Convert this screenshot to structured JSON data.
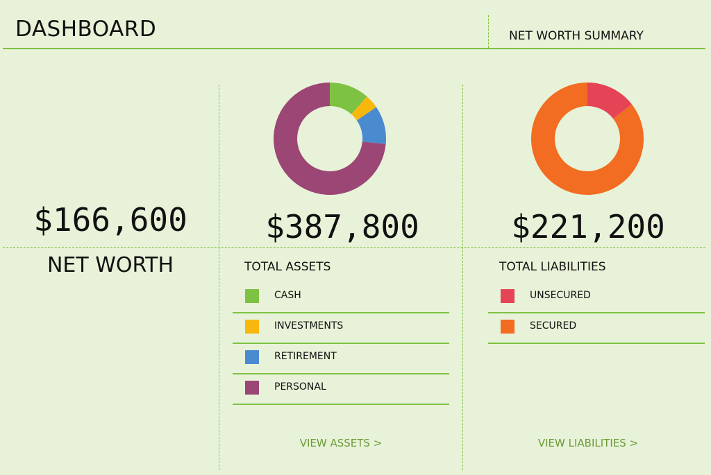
{
  "header": {
    "title": "DASHBOARD",
    "summary_label": "NET WORTH SUMMARY"
  },
  "net_worth": {
    "value": "$166,600",
    "label": "NET WORTH"
  },
  "assets": {
    "total": "$387,800",
    "title": "TOTAL ASSETS",
    "items": [
      {
        "label": "CASH",
        "color": "#7dc242",
        "share": 0.115
      },
      {
        "label": "INVESTMENTS",
        "color": "#f8b70c",
        "share": 0.04
      },
      {
        "label": "RETIREMENT",
        "color": "#4a8bd0",
        "share": 0.11
      },
      {
        "label": "PERSONAL",
        "color": "#9b4675",
        "share": 0.735
      }
    ],
    "link": "VIEW ASSETS >"
  },
  "liabilities": {
    "total": "$221,200",
    "title": "TOTAL LIABILITIES",
    "items": [
      {
        "label": "UNSECURED",
        "color": "#e54457",
        "share": 0.145
      },
      {
        "label": "SECURED",
        "color": "#f26c21",
        "share": 0.855
      }
    ],
    "link": "VIEW LIABILITIES >"
  }
}
